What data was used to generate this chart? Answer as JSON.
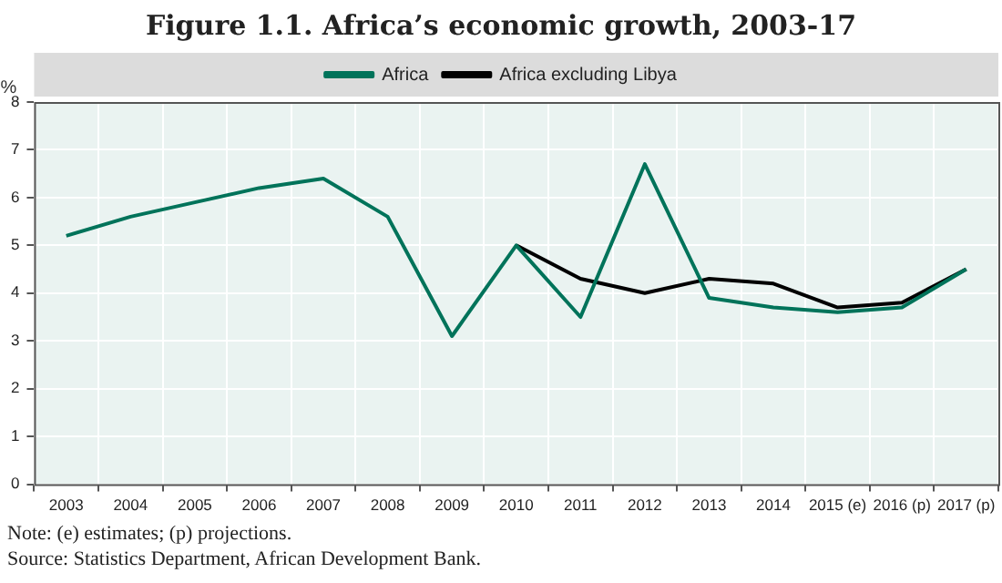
{
  "chart_data": {
    "type": "line",
    "title": "Figure 1.1. Africa’s economic growth, 2003-17",
    "ylabel": "%",
    "categories": [
      "2003",
      "2004",
      "2005",
      "2006",
      "2007",
      "2008",
      "2009",
      "2010",
      "2011",
      "2012",
      "2013",
      "2014",
      "2015 (e)",
      "2016 (p)",
      "2017 (p)"
    ],
    "series": [
      {
        "name": "Africa",
        "color": "#00735a",
        "values": [
          5.2,
          5.6,
          5.9,
          6.2,
          6.4,
          5.6,
          3.1,
          5.0,
          3.5,
          6.7,
          3.9,
          3.7,
          3.6,
          3.7,
          4.5
        ]
      },
      {
        "name": "Africa excluding Libya",
        "color": "#000000",
        "values": [
          null,
          null,
          null,
          null,
          null,
          null,
          null,
          5.0,
          4.3,
          4.0,
          4.3,
          4.2,
          3.7,
          3.8,
          4.5
        ]
      }
    ],
    "ylim": [
      0,
      8
    ],
    "yticks": [
      0,
      1,
      2,
      3,
      4,
      5,
      6,
      7,
      8
    ],
    "grid": true,
    "legend": "top",
    "marker": "none",
    "line_style": "solid",
    "annotations": [
      "Note: (e) estimates; (p) projections.",
      "Source: Statistics Department, African Development Bank."
    ]
  }
}
